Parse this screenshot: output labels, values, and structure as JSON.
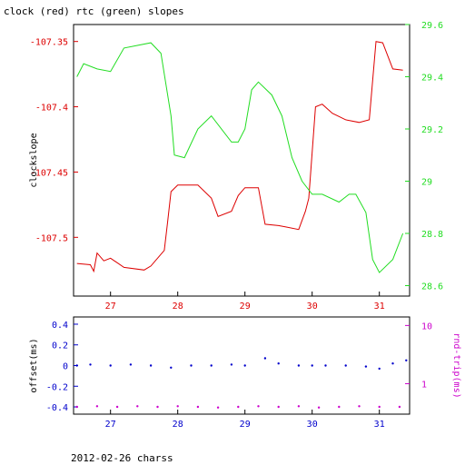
{
  "title": "clock (red) rtc (green) slopes",
  "footer": "2012-02-26 charss",
  "colors": {
    "red": "#dd0000",
    "green": "#22dd22",
    "blue": "#0000cc",
    "magenta": "#cc00cc",
    "axis": "#000000"
  },
  "chart_data": [
    {
      "type": "line",
      "title": "clock (red) rtc (green) slopes",
      "xlim": [
        26.45,
        31.45
      ],
      "x_ticks": [
        "27",
        "28",
        "29",
        "30",
        "31"
      ],
      "ylabel": "clockslope",
      "ylim": [
        -107.545,
        -107.337
      ],
      "y_ticks": [
        "-107.35",
        "-107.4",
        "-107.45",
        "-107.5"
      ],
      "y2lim": [
        28.56,
        29.6
      ],
      "y2_ticks": [
        "29.6",
        "29.4",
        "29.2",
        "29",
        "28.8",
        "28.6"
      ],
      "grid": false,
      "series": [
        {
          "name": "clock",
          "axis": "left",
          "color": "red",
          "points": [
            [
              26.5,
              -107.52
            ],
            [
              26.7,
              -107.521
            ],
            [
              26.75,
              -107.526
            ],
            [
              26.8,
              -107.512
            ],
            [
              26.9,
              -107.518
            ],
            [
              27.0,
              -107.516
            ],
            [
              27.2,
              -107.523
            ],
            [
              27.5,
              -107.525
            ],
            [
              27.6,
              -107.522
            ],
            [
              27.8,
              -107.51
            ],
            [
              27.85,
              -107.488
            ],
            [
              27.9,
              -107.465
            ],
            [
              28.0,
              -107.46
            ],
            [
              28.3,
              -107.46
            ],
            [
              28.5,
              -107.47
            ],
            [
              28.6,
              -107.484
            ],
            [
              28.8,
              -107.48
            ],
            [
              28.9,
              -107.468
            ],
            [
              29.0,
              -107.462
            ],
            [
              29.2,
              -107.462
            ],
            [
              29.3,
              -107.49
            ],
            [
              29.5,
              -107.491
            ],
            [
              29.6,
              -107.492
            ],
            [
              29.8,
              -107.494
            ],
            [
              29.9,
              -107.48
            ],
            [
              29.95,
              -107.47
            ],
            [
              30.05,
              -107.4
            ],
            [
              30.15,
              -107.398
            ],
            [
              30.3,
              -107.405
            ],
            [
              30.5,
              -107.41
            ],
            [
              30.7,
              -107.412
            ],
            [
              30.85,
              -107.41
            ],
            [
              30.95,
              -107.35
            ],
            [
              31.05,
              -107.351
            ],
            [
              31.2,
              -107.371
            ],
            [
              31.35,
              -107.372
            ]
          ]
        },
        {
          "name": "rtc",
          "axis": "right",
          "color": "green",
          "points": [
            [
              26.5,
              29.4
            ],
            [
              26.6,
              29.45
            ],
            [
              26.8,
              29.43
            ],
            [
              27.0,
              29.42
            ],
            [
              27.2,
              29.51
            ],
            [
              27.4,
              29.52
            ],
            [
              27.6,
              29.53
            ],
            [
              27.75,
              29.49
            ],
            [
              27.9,
              29.25
            ],
            [
              27.95,
              29.1
            ],
            [
              28.1,
              29.09
            ],
            [
              28.3,
              29.2
            ],
            [
              28.5,
              29.25
            ],
            [
              28.8,
              29.15
            ],
            [
              28.9,
              29.15
            ],
            [
              29.0,
              29.2
            ],
            [
              29.1,
              29.35
            ],
            [
              29.2,
              29.38
            ],
            [
              29.4,
              29.33
            ],
            [
              29.55,
              29.25
            ],
            [
              29.7,
              29.09
            ],
            [
              29.85,
              29.0
            ],
            [
              30.0,
              28.95
            ],
            [
              30.15,
              28.95
            ],
            [
              30.4,
              28.92
            ],
            [
              30.55,
              28.95
            ],
            [
              30.65,
              28.95
            ],
            [
              30.8,
              28.88
            ],
            [
              30.9,
              28.7
            ],
            [
              31.0,
              28.65
            ],
            [
              31.2,
              28.7
            ],
            [
              31.35,
              28.8
            ]
          ]
        }
      ]
    },
    {
      "type": "scatter",
      "xlim": [
        26.45,
        31.45
      ],
      "x_ticks": [
        "27",
        "28",
        "29",
        "30",
        "31"
      ],
      "ylabel": "offset(ms)",
      "ylim": [
        -0.47,
        0.47
      ],
      "y_ticks": [
        "0.4",
        "0.2",
        "0",
        "-0.2",
        "-0.4"
      ],
      "y2label": "rnd-trip(ms)",
      "y2_scale": "log",
      "y2lim": [
        0.3,
        14
      ],
      "y2_ticks": [
        "10",
        "1"
      ],
      "series": [
        {
          "name": "offset",
          "axis": "left",
          "color": "blue",
          "points": [
            [
              26.5,
              0.0
            ],
            [
              26.7,
              0.01
            ],
            [
              27.0,
              0.0
            ],
            [
              27.3,
              0.01
            ],
            [
              27.6,
              0.0
            ],
            [
              27.9,
              -0.02
            ],
            [
              28.2,
              0.0
            ],
            [
              28.5,
              0.0
            ],
            [
              28.8,
              0.01
            ],
            [
              29.0,
              0.0
            ],
            [
              29.3,
              0.07
            ],
            [
              29.5,
              0.02
            ],
            [
              29.8,
              0.0
            ],
            [
              30.0,
              0.0
            ],
            [
              30.2,
              0.0
            ],
            [
              30.5,
              0.0
            ],
            [
              30.8,
              -0.01
            ],
            [
              31.0,
              -0.03
            ],
            [
              31.2,
              0.02
            ],
            [
              31.4,
              0.05
            ]
          ]
        },
        {
          "name": "rnd-trip",
          "axis": "right",
          "color": "magenta",
          "points": [
            [
              26.5,
              0.4
            ],
            [
              26.8,
              0.41
            ],
            [
              27.1,
              0.4
            ],
            [
              27.4,
              0.41
            ],
            [
              27.7,
              0.4
            ],
            [
              28.0,
              0.41
            ],
            [
              28.3,
              0.4
            ],
            [
              28.6,
              0.39
            ],
            [
              28.9,
              0.4
            ],
            [
              29.2,
              0.41
            ],
            [
              29.5,
              0.4
            ],
            [
              29.8,
              0.41
            ],
            [
              30.1,
              0.39
            ],
            [
              30.4,
              0.4
            ],
            [
              30.7,
              0.41
            ],
            [
              31.0,
              0.4
            ],
            [
              31.3,
              0.4
            ]
          ]
        }
      ]
    }
  ]
}
